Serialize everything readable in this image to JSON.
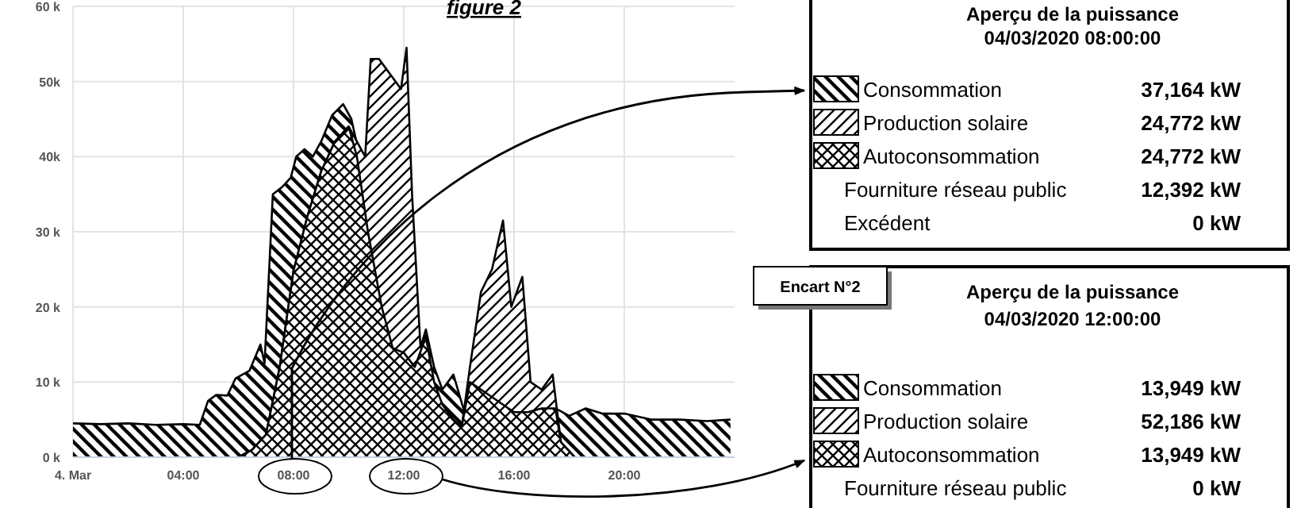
{
  "chart_data": {
    "type": "area",
    "title": "figure 2",
    "xlim": [
      0,
      24
    ],
    "xticks": [
      {
        "value": 0,
        "label": "4. Mar"
      },
      {
        "value": 4,
        "label": "04:00"
      },
      {
        "value": 8,
        "label": "08:00"
      },
      {
        "value": 12,
        "label": "12:00"
      },
      {
        "value": 16,
        "label": "16:00"
      },
      {
        "value": 20,
        "label": "20:00"
      }
    ],
    "ylim": [
      0,
      60000
    ],
    "yticks": [
      {
        "value": 0,
        "label": "0 k"
      },
      {
        "value": 10000,
        "label": "10 k"
      },
      {
        "value": 20000,
        "label": "20 k"
      },
      {
        "value": 30000,
        "label": "30 k"
      },
      {
        "value": 40000,
        "label": "40k"
      },
      {
        "value": 50000,
        "label": "50k"
      },
      {
        "value": 60000,
        "label": "60 k"
      }
    ],
    "grid": true,
    "legend": "right",
    "line_style": "solid",
    "series": [
      {
        "name": "Consommation",
        "color": "#000000",
        "x": [
          0,
          1,
          2,
          3,
          4,
          4.6,
          4.9,
          5.2,
          5.6,
          5.9,
          6.4,
          6.8,
          6.95,
          7.25,
          7.6,
          7.9,
          8.1,
          8.4,
          8.7,
          9,
          9.4,
          9.8,
          10.1,
          10.4,
          10.8,
          11.2,
          11.6,
          12,
          12.4,
          12.8,
          13.1,
          13.4,
          13.8,
          14.2,
          14.6,
          15,
          15.5,
          16,
          16.5,
          17,
          17.5,
          18,
          18.6,
          19.2,
          20,
          21,
          22,
          23,
          23.85
        ],
        "values": [
          4500,
          4400,
          4500,
          4300,
          4400,
          4300,
          7500,
          8300,
          8200,
          10500,
          11500,
          15000,
          12500,
          35000,
          36000,
          37200,
          40000,
          41000,
          40000,
          42000,
          45500,
          47000,
          45000,
          40000,
          30000,
          20000,
          14500,
          13900,
          12000,
          17000,
          12000,
          9000,
          11000,
          6000,
          10000,
          9000,
          7000,
          6000,
          6000,
          6500,
          6500,
          5500,
          6500,
          5800,
          5800,
          5000,
          5000,
          4800,
          5000
        ]
      },
      {
        "name": "Production solaire",
        "color": "#000000",
        "x": [
          6,
          6.5,
          7,
          7.5,
          8,
          8.5,
          9,
          9.5,
          10,
          10.3,
          10.6,
          10.8,
          11.1,
          11.5,
          11.9,
          12.1,
          12.3,
          12.6,
          12.9,
          13.3,
          13.6,
          14.1,
          14.4,
          14.8,
          15.2,
          15.6,
          15.9,
          16.3,
          16.6,
          17,
          17.4,
          17.7,
          18.2
        ],
        "values": [
          0,
          1000,
          3000,
          12000,
          24800,
          32000,
          38000,
          42000,
          44000,
          42000,
          40000,
          53000,
          53000,
          51000,
          49000,
          54500,
          35000,
          15000,
          10000,
          7000,
          5000,
          4000,
          12000,
          22000,
          25000,
          31500,
          20000,
          24000,
          10000,
          9000,
          11000,
          2000,
          0
        ]
      },
      {
        "name": "Autoconsommation",
        "color": "#000000",
        "x": [
          6,
          6.5,
          7,
          7.5,
          8,
          8.5,
          9,
          9.5,
          10,
          10.3,
          10.7,
          11.2,
          11.6,
          12,
          12.4,
          12.8,
          13.1,
          13.4,
          13.8,
          14.1,
          14.4,
          14.8,
          15.2,
          15.6,
          16,
          16.5,
          17,
          17.5,
          17.7,
          18.2
        ],
        "values": [
          0,
          1000,
          3000,
          12000,
          24800,
          32000,
          38000,
          42000,
          44000,
          40000,
          30000,
          20000,
          14500,
          13900,
          12000,
          16000,
          10000,
          7000,
          5000,
          4000,
          10000,
          9000,
          8000,
          7000,
          6000,
          6000,
          6500,
          6500,
          2000,
          0
        ]
      }
    ],
    "annotations": [
      "Aperçu de la puissance",
      "04/03/2020 08:00:00",
      "37,164 kW",
      "24,772 kW",
      "24,772 kW",
      "Fourniture réseau public",
      "12,392 kW",
      "Excédent",
      "0 kW",
      "Encart  N°2",
      "Aperçu de la puissance",
      "04/03/2020 12:00:00",
      "13,949 kW",
      "52,186 kW",
      "13,949 kW",
      "Fourniture réseau public",
      "0 kW"
    ]
  }
}
